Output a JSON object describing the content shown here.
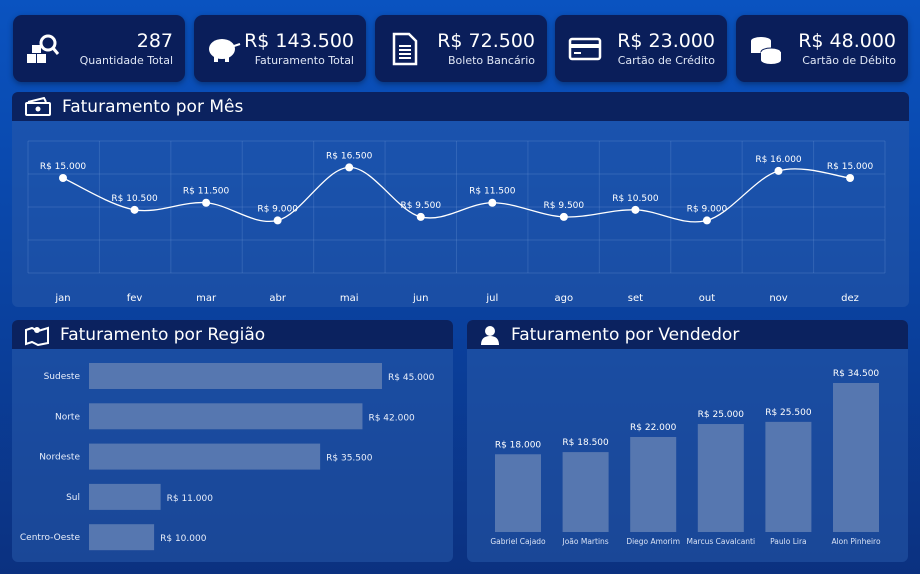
{
  "kpis": [
    {
      "value": "287",
      "label": "Quantidade Total",
      "icon": "inventory-search-icon"
    },
    {
      "value": "R$ 143.500",
      "label": "Faturamento Total",
      "icon": "piggy-bank-icon"
    },
    {
      "value": "R$ 72.500",
      "label": "Boleto Bancário",
      "icon": "document-icon"
    },
    {
      "value": "R$ 23.000",
      "label": "Cartão de Crédito",
      "icon": "credit-card-icon"
    },
    {
      "value": "R$ 48.000",
      "label": "Cartão de Débito",
      "icon": "coins-icon"
    }
  ],
  "panels": {
    "month": "Faturamento por Mês",
    "region": "Faturamento por Região",
    "seller": "Faturamento por Vendedor"
  },
  "chart_data": [
    {
      "type": "line",
      "categories": [
        "jan",
        "fev",
        "mar",
        "abr",
        "mai",
        "jun",
        "jul",
        "ago",
        "set",
        "out",
        "nov",
        "dez"
      ],
      "values": [
        15000,
        10500,
        11500,
        9000,
        16500,
        9500,
        11500,
        9500,
        10500,
        9000,
        16000,
        15000
      ],
      "labels": [
        "R$ 15.000",
        "R$ 10.500",
        "R$ 11.500",
        "R$ 9.000",
        "R$ 16.500",
        "R$ 9.500",
        "R$ 11.500",
        "R$ 9.500",
        "R$ 10.500",
        "R$ 9.000",
        "R$ 16.000",
        "R$ 15.000"
      ],
      "grid": true,
      "color": "#ffffff"
    },
    {
      "type": "bar",
      "orientation": "horizontal",
      "categories": [
        "Sudeste",
        "Norte",
        "Nordeste",
        "Sul",
        "Centro-Oeste"
      ],
      "values": [
        45000,
        42000,
        35500,
        11000,
        10000
      ],
      "labels": [
        "R$ 45.000",
        "R$ 42.000",
        "R$ 35.500",
        "R$ 11.000",
        "R$ 10.000"
      ],
      "color": "#5677b0"
    },
    {
      "type": "bar",
      "orientation": "vertical",
      "categories": [
        "Gabriel Cajado",
        "João Martins",
        "Diego Amorim",
        "Marcus Cavalcanti",
        "Paulo Lira",
        "Alon Pinheiro"
      ],
      "values": [
        18000,
        18500,
        22000,
        25000,
        25500,
        34500
      ],
      "labels": [
        "R$ 18.000",
        "R$ 18.500",
        "R$ 22.000",
        "R$ 25.000",
        "R$ 25.500",
        "R$ 34.500"
      ],
      "color": "#5677b0"
    }
  ]
}
